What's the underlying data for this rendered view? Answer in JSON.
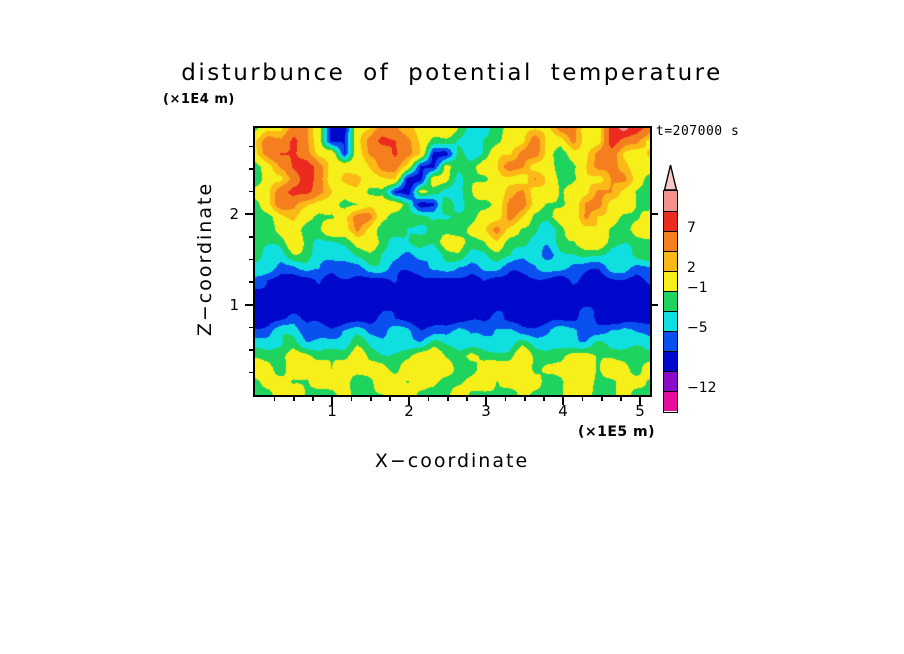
{
  "title": "disturbunce of potential temperature",
  "annotations": {
    "time_label": "t=207000 s",
    "z_unit": "(×1E4 m)",
    "x_unit": "(×1E5 m)"
  },
  "axes": {
    "x_label": "X−coordinate",
    "z_label": "Z−coordinate",
    "x_tick_labels": [
      "1",
      "2",
      "3",
      "4",
      "5"
    ],
    "z_tick_labels": [
      "1",
      "2"
    ]
  },
  "colorbar": {
    "arrow_color": "#f6c9c7",
    "segments": [
      {
        "color": "#f2928b",
        "label": ""
      },
      {
        "color": "#ea2b1e",
        "label": "7"
      },
      {
        "color": "#f57f1f",
        "label": ""
      },
      {
        "color": "#fbb817",
        "label": "2"
      },
      {
        "color": "#f6ef19",
        "label": "−1"
      },
      {
        "color": "#1fd35f",
        "label": ""
      },
      {
        "color": "#10dfe0",
        "label": "−5"
      },
      {
        "color": "#0a50f0",
        "label": ""
      },
      {
        "color": "#0008cc",
        "label": ""
      },
      {
        "color": "#8a0bc8",
        "label": "−12"
      },
      {
        "color": "#e80c9a",
        "label": ""
      }
    ]
  },
  "chart_data": {
    "type": "heatmap",
    "title": "disturbunce of potential temperature",
    "xlabel": "X−coordinate",
    "zlabel": "Z−coordinate",
    "x_unit_scale": "(×1E5 m)",
    "z_unit_scale": "(×1E4 m)",
    "time": "t=207000 s",
    "x_range": [
      0,
      5.13
    ],
    "z_range": [
      0,
      2.95
    ],
    "x_ticks": [
      1,
      2,
      3,
      4,
      5
    ],
    "z_ticks": [
      1,
      2
    ],
    "levels": [
      -12,
      -9,
      -7,
      -5,
      -3,
      -1,
      2,
      4,
      7,
      10,
      13
    ],
    "level_colors": [
      "#e80c9a",
      "#8a0bc8",
      "#0008cc",
      "#0a50f0",
      "#10dfe0",
      "#1fd35f",
      "#f6ef19",
      "#fbb817",
      "#f57f1f",
      "#ea2b1e",
      "#f2928b",
      "#f6c9c7"
    ],
    "grid_rows_top_to_bottom": [
      [
        -2,
        1,
        1,
        5,
        5,
        1,
        -8,
        -8,
        1,
        1,
        5,
        5,
        3,
        1,
        1,
        1,
        -2,
        -4,
        -4,
        -2,
        1,
        1,
        1,
        1,
        5,
        5,
        1,
        1,
        8,
        11,
        8,
        5
      ],
      [
        1,
        5,
        5,
        8,
        5,
        1,
        -8,
        -8,
        1,
        5,
        8,
        8,
        5,
        1,
        -2,
        -2,
        -4,
        -4,
        -2,
        -2,
        1,
        1,
        5,
        1,
        1,
        5,
        1,
        1,
        8,
        5,
        5,
        1
      ],
      [
        1,
        5,
        8,
        8,
        5,
        1,
        1,
        -8,
        1,
        5,
        5,
        8,
        5,
        1,
        -8,
        -8,
        -2,
        -4,
        -2,
        1,
        1,
        5,
        5,
        1,
        -2,
        1,
        1,
        5,
        5,
        1,
        1,
        3
      ],
      [
        -2,
        1,
        5,
        8,
        8,
        5,
        1,
        1,
        1,
        3,
        5,
        5,
        1,
        -8,
        -8,
        1,
        -2,
        -2,
        1,
        1,
        5,
        5,
        1,
        1,
        -2,
        -2,
        1,
        5,
        5,
        3,
        1,
        1
      ],
      [
        -2,
        1,
        1,
        5,
        8,
        5,
        1,
        3,
        3,
        1,
        1,
        1,
        -8,
        -8,
        1,
        1,
        -4,
        -2,
        -2,
        1,
        1,
        1,
        5,
        1,
        -2,
        -2,
        1,
        1,
        5,
        5,
        1,
        -2
      ],
      [
        1,
        1,
        5,
        8,
        8,
        5,
        3,
        1,
        1,
        -2,
        -2,
        -8,
        -8,
        1,
        -2,
        -4,
        -4,
        -2,
        1,
        1,
        3,
        5,
        1,
        1,
        -2,
        1,
        1,
        5,
        5,
        1,
        -2,
        -2
      ],
      [
        -2,
        1,
        5,
        5,
        3,
        1,
        1,
        -2,
        -2,
        1,
        1,
        1,
        -2,
        -8,
        -8,
        -2,
        -4,
        -2,
        -2,
        1,
        5,
        5,
        1,
        -2,
        -2,
        1,
        5,
        5,
        1,
        1,
        -2,
        -2
      ],
      [
        -2,
        -2,
        1,
        3,
        1,
        -2,
        -2,
        1,
        5,
        5,
        1,
        -2,
        -2,
        -2,
        -4,
        -4,
        -2,
        -2,
        1,
        1,
        5,
        1,
        -2,
        -2,
        1,
        1,
        5,
        1,
        1,
        -2,
        -2,
        1
      ],
      [
        -2,
        -2,
        1,
        1,
        -2,
        -2,
        1,
        1,
        5,
        1,
        -2,
        -2,
        -4,
        -4,
        -2,
        -2,
        -2,
        1,
        1,
        5,
        1,
        -2,
        -2,
        -4,
        -2,
        1,
        1,
        1,
        -2,
        -2,
        1,
        1
      ],
      [
        -2,
        -2,
        -2,
        1,
        -2,
        -4,
        -4,
        -2,
        1,
        1,
        -2,
        -4,
        -4,
        -2,
        -2,
        1,
        1,
        -2,
        -2,
        1,
        -2,
        -2,
        -4,
        -4,
        -2,
        -2,
        1,
        1,
        -2,
        -2,
        -2,
        -2
      ],
      [
        -2,
        -4,
        -4,
        -2,
        -2,
        -4,
        -4,
        -4,
        -2,
        -2,
        -4,
        -4,
        -6,
        -4,
        -4,
        -2,
        -2,
        -4,
        -4,
        -2,
        -2,
        -4,
        -4,
        -6,
        -4,
        -4,
        -2,
        -2,
        -4,
        -4,
        -2,
        -2
      ],
      [
        -4,
        -4,
        -6,
        -6,
        -4,
        -4,
        -6,
        -6,
        -6,
        -4,
        -4,
        -6,
        -6,
        -6,
        -4,
        -4,
        -6,
        -6,
        -4,
        -4,
        -6,
        -6,
        -6,
        -4,
        -4,
        -6,
        -6,
        -6,
        -4,
        -4,
        -6,
        -6
      ],
      [
        -6,
        -8,
        -8,
        -8,
        -8,
        -6,
        -8,
        -8,
        -8,
        -8,
        -8,
        -6,
        -8,
        -8,
        -8,
        -8,
        -8,
        -8,
        -6,
        -8,
        -8,
        -8,
        -8,
        -8,
        -8,
        -6,
        -8,
        -8,
        -8,
        -8,
        -8,
        -6
      ],
      [
        -8,
        -8,
        -8,
        -8,
        -8,
        -8,
        -8,
        -8,
        -8,
        -8,
        -8,
        -8,
        -8,
        -8,
        -8,
        -8,
        -8,
        -8,
        -8,
        -8,
        -8,
        -8,
        -8,
        -8,
        -8,
        -8,
        -8,
        -8,
        -8,
        -8,
        -8,
        -8
      ],
      [
        -8,
        -8,
        -8,
        -8,
        -8,
        -8,
        -8,
        -8,
        -8,
        -8,
        -8,
        -8,
        -8,
        -8,
        -8,
        -8,
        -8,
        -8,
        -8,
        -8,
        -8,
        -8,
        -8,
        -8,
        -8,
        -8,
        -8,
        -8,
        -8,
        -8,
        -8,
        -8
      ],
      [
        -8,
        -8,
        -8,
        -6,
        -8,
        -8,
        -8,
        -8,
        -8,
        -8,
        -6,
        -8,
        -8,
        -8,
        -8,
        -8,
        -8,
        -8,
        -8,
        -6,
        -8,
        -8,
        -8,
        -8,
        -8,
        -8,
        -6,
        -8,
        -8,
        -8,
        -8,
        -8
      ],
      [
        -6,
        -6,
        -4,
        -4,
        -6,
        -6,
        -6,
        -4,
        -4,
        -6,
        -6,
        -4,
        -4,
        -6,
        -6,
        -6,
        -4,
        -6,
        -6,
        -4,
        -4,
        -6,
        -6,
        -6,
        -4,
        -4,
        -6,
        -6,
        -4,
        -4,
        -6,
        -6
      ],
      [
        -4,
        -4,
        -4,
        -2,
        -4,
        -4,
        -4,
        -4,
        -2,
        -4,
        -4,
        -4,
        -4,
        -4,
        -2,
        -4,
        -4,
        -4,
        -4,
        -4,
        -4,
        -2,
        -4,
        -4,
        -4,
        -4,
        -4,
        -2,
        -4,
        -4,
        -4,
        -4
      ],
      [
        -2,
        -2,
        -2,
        1,
        1,
        -2,
        -2,
        -2,
        1,
        -2,
        -2,
        -2,
        -2,
        1,
        1,
        -2,
        -2,
        1,
        -2,
        -2,
        -2,
        1,
        -2,
        -2,
        -2,
        1,
        1,
        -2,
        -2,
        -2,
        -2,
        -2
      ],
      [
        1,
        1,
        -2,
        1,
        1,
        1,
        -2,
        1,
        1,
        1,
        1,
        -2,
        1,
        1,
        1,
        1,
        -2,
        -2,
        1,
        1,
        1,
        1,
        -2,
        1,
        1,
        1,
        1,
        -2,
        1,
        1,
        -2,
        1
      ],
      [
        -2,
        1,
        1,
        -2,
        -2,
        1,
        1,
        1,
        -2,
        -2,
        1,
        1,
        -2,
        1,
        1,
        -2,
        -2,
        1,
        1,
        -2,
        1,
        1,
        1,
        -2,
        -2,
        1,
        1,
        -2,
        -2,
        1,
        1,
        -2
      ],
      [
        -2,
        -2,
        1,
        1,
        -2,
        -2,
        -2,
        1,
        -2,
        -2,
        -2,
        1,
        1,
        -2,
        -2,
        -2,
        1,
        -2,
        -2,
        -2,
        -2,
        1,
        -2,
        -2,
        -2,
        1,
        1,
        -2,
        -2,
        1,
        -2,
        -2
      ]
    ]
  }
}
